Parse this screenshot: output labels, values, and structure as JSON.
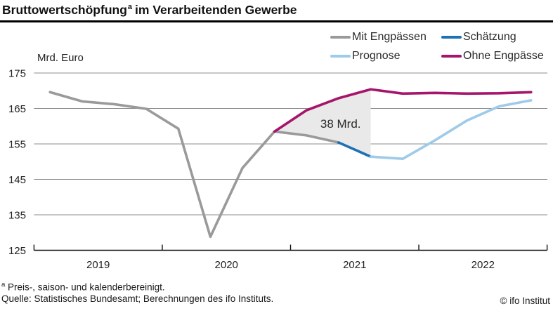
{
  "title": {
    "main": "Bruttowertschöpfung",
    "superscript": "a",
    "rest": "im Verarbeitenden Gewerbe"
  },
  "y_axis_unit": "Mrd. Euro",
  "legend": {
    "items": [
      {
        "label": "Mit Engpässen",
        "series_id": "mit-engpaessen"
      },
      {
        "label": "Schätzung",
        "series_id": "schaetzung"
      },
      {
        "label": "Prognose",
        "series_id": "prognose"
      },
      {
        "label": "Ohne Engpässe",
        "series_id": "ohne-engpaesse"
      }
    ]
  },
  "footnotes": {
    "note_sup": "a",
    "note_text": " Preis-, saison- und kalenderbereinigt.",
    "source": "Quelle: Statistisches Bundesamt; Berechnungen des ifo Instituts."
  },
  "copyright": "© ifo Institut",
  "chart_data": {
    "type": "line",
    "title": "Bruttowertschöpfung im Verarbeitenden Gewerbe",
    "ylabel": "Mrd. Euro",
    "xlim": [
      2019,
      2023
    ],
    "ylim": [
      125,
      175
    ],
    "y_ticks": [
      125,
      135,
      145,
      155,
      165,
      175
    ],
    "x_ticks": [
      2019,
      2020,
      2021,
      2022
    ],
    "grid": "horizontal",
    "legend_position": "top-right",
    "x_unit": "quarter midpoints (decimal years)",
    "series": [
      {
        "id": "mit-engpaessen",
        "name": "Mit Engpässen",
        "color": "#9a9a9a",
        "points": [
          [
            2019.125,
            169.6
          ],
          [
            2019.375,
            167.0
          ],
          [
            2019.625,
            166.2
          ],
          [
            2019.875,
            164.9
          ],
          [
            2020.125,
            159.3
          ],
          [
            2020.375,
            128.8
          ],
          [
            2020.625,
            148.2
          ],
          [
            2020.875,
            158.5
          ],
          [
            2021.125,
            157.4
          ],
          [
            2021.375,
            155.4
          ]
        ]
      },
      {
        "id": "schaetzung",
        "name": "Schätzung",
        "color": "#1d71b5",
        "points": [
          [
            2021.375,
            155.4
          ],
          [
            2021.625,
            151.4
          ]
        ]
      },
      {
        "id": "prognose",
        "name": "Prognose",
        "color": "#9ecbe9",
        "points": [
          [
            2021.625,
            151.4
          ],
          [
            2021.875,
            150.8
          ],
          [
            2022.125,
            156.0
          ],
          [
            2022.375,
            161.6
          ],
          [
            2022.625,
            165.6
          ],
          [
            2022.875,
            167.3
          ]
        ]
      },
      {
        "id": "ohne-engpaesse",
        "name": "Ohne Engpässe",
        "color": "#a5156c",
        "points": [
          [
            2020.875,
            158.5
          ],
          [
            2021.125,
            164.5
          ],
          [
            2021.375,
            167.9
          ],
          [
            2021.625,
            170.4
          ],
          [
            2021.875,
            169.2
          ],
          [
            2022.125,
            169.4
          ],
          [
            2022.375,
            169.2
          ],
          [
            2022.625,
            169.3
          ],
          [
            2022.875,
            169.6
          ]
        ]
      }
    ],
    "shaded_area": {
      "label": "38 Mrd.",
      "from": 2020.875,
      "to": 2021.625,
      "upper_series": "Ohne Engpässe",
      "lower_series": [
        "Mit Engpässen",
        "Schätzung"
      ],
      "fill": "#e9e9e9"
    },
    "annotation": {
      "text": "38 Mrd.",
      "x": 2021.39,
      "y": 160.7
    }
  }
}
